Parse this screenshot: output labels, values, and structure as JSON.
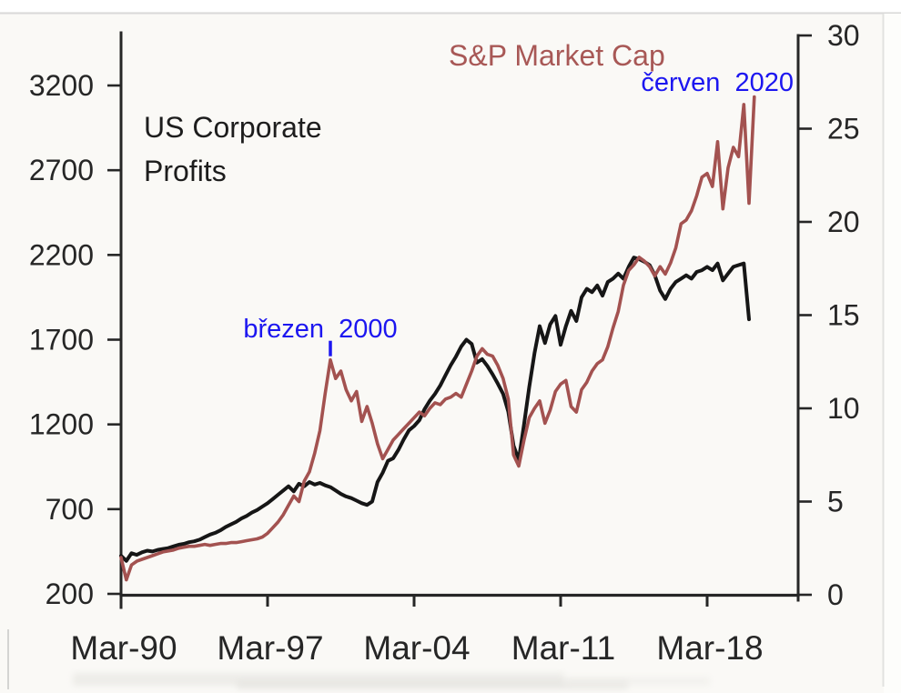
{
  "page": {
    "background": "#faf9f6",
    "frame_color": "#d9d9d9",
    "annotation_color": "#1c16f0"
  },
  "chart_data": {
    "type": "line",
    "title": "",
    "grid": false,
    "legend_position": "inline-labels",
    "left_axis": {
      "title_line1": "US Corporate",
      "title_line2": "Profits",
      "ticks": [
        200,
        700,
        1200,
        1700,
        2200,
        2700,
        3200
      ],
      "range": [
        200,
        3500
      ]
    },
    "right_axis": {
      "title": "S&P Market Cap",
      "ticks": [
        0,
        5,
        10,
        15,
        20,
        25,
        30
      ],
      "range": [
        0,
        30
      ]
    },
    "x_axis": {
      "ticks": [
        {
          "label": "Mar-90",
          "year": 1990.25
        },
        {
          "label": "Mar-97",
          "year": 1997.25
        },
        {
          "label": "Mar-04",
          "year": 2004.25
        },
        {
          "label": "Mar-11",
          "year": 2011.25
        },
        {
          "label": "Mar-18",
          "year": 2018.25
        }
      ],
      "start_year": 1990.25,
      "end_year": 2020.5
    },
    "series": [
      {
        "name": "US Corporate Profits",
        "axis": "left",
        "color": "#161616",
        "width": 4,
        "start_year": 1990.25,
        "step_years": 0.25,
        "values": [
          425,
          395,
          440,
          430,
          445,
          455,
          450,
          460,
          465,
          470,
          480,
          490,
          495,
          505,
          510,
          520,
          535,
          550,
          560,
          575,
          595,
          610,
          625,
          645,
          660,
          680,
          695,
          715,
          735,
          760,
          785,
          810,
          835,
          805,
          850,
          835,
          860,
          845,
          855,
          840,
          830,
          810,
          790,
          775,
          765,
          750,
          735,
          725,
          745,
          860,
          915,
          985,
          1000,
          1050,
          1110,
          1165,
          1190,
          1225,
          1290,
          1340,
          1380,
          1430,
          1490,
          1550,
          1600,
          1660,
          1700,
          1675,
          1565,
          1585,
          1545,
          1495,
          1440,
          1380,
          1275,
          1075,
          990,
          1200,
          1420,
          1620,
          1780,
          1680,
          1790,
          1840,
          1670,
          1780,
          1870,
          1810,
          1950,
          2000,
          1980,
          2020,
          1960,
          2040,
          2060,
          2090,
          2060,
          2130,
          2185,
          2175,
          2160,
          2140,
          2080,
          1990,
          1940,
          2000,
          2040,
          2060,
          2080,
          2060,
          2100,
          2110,
          2130,
          2110,
          2150,
          2050,
          2090,
          2130,
          2140,
          2150,
          1820
        ]
      },
      {
        "name": "S&P Market Cap",
        "axis": "right",
        "color": "#a35250",
        "width": 3.6,
        "start_year": 1990.25,
        "step_years": 0.25,
        "values": [
          2.0,
          0.8,
          1.6,
          1.8,
          1.9,
          2.0,
          2.1,
          2.2,
          2.3,
          2.35,
          2.4,
          2.5,
          2.55,
          2.6,
          2.6,
          2.65,
          2.7,
          2.65,
          2.7,
          2.75,
          2.75,
          2.8,
          2.8,
          2.85,
          2.9,
          2.95,
          3.0,
          3.1,
          3.3,
          3.6,
          3.9,
          4.3,
          4.8,
          5.3,
          5.0,
          6.1,
          6.6,
          7.6,
          8.8,
          10.8,
          12.6,
          11.6,
          12.0,
          11.0,
          10.4,
          10.9,
          9.3,
          10.1,
          9.2,
          8.1,
          7.3,
          7.8,
          8.3,
          8.6,
          8.9,
          9.2,
          9.5,
          9.8,
          9.6,
          10.0,
          10.3,
          10.2,
          10.5,
          10.6,
          10.8,
          10.6,
          11.3,
          12.0,
          12.8,
          13.2,
          12.9,
          12.8,
          12.3,
          11.6,
          10.5,
          7.5,
          6.9,
          8.3,
          9.5,
          10.0,
          10.4,
          9.2,
          9.9,
          10.9,
          11.3,
          11.5,
          10.1,
          9.8,
          11.0,
          11.4,
          12.0,
          12.4,
          12.6,
          13.3,
          14.3,
          15.2,
          16.6,
          17.4,
          17.7,
          18.1,
          17.9,
          17.6,
          17.1,
          17.6,
          17.2,
          17.8,
          18.6,
          19.9,
          20.1,
          20.6,
          21.4,
          22.4,
          22.6,
          21.9,
          24.3,
          20.7,
          22.9,
          24.0,
          23.5,
          26.3,
          21.0,
          26.7
        ]
      }
    ],
    "annotations": [
      {
        "text": "březen  2000",
        "color": "#1c16f0",
        "marker_year": 2000.25,
        "has_marker": true
      },
      {
        "text": "červen  2020",
        "color": "#1c16f0",
        "marker_year": 2020.5,
        "has_marker": false
      }
    ]
  }
}
